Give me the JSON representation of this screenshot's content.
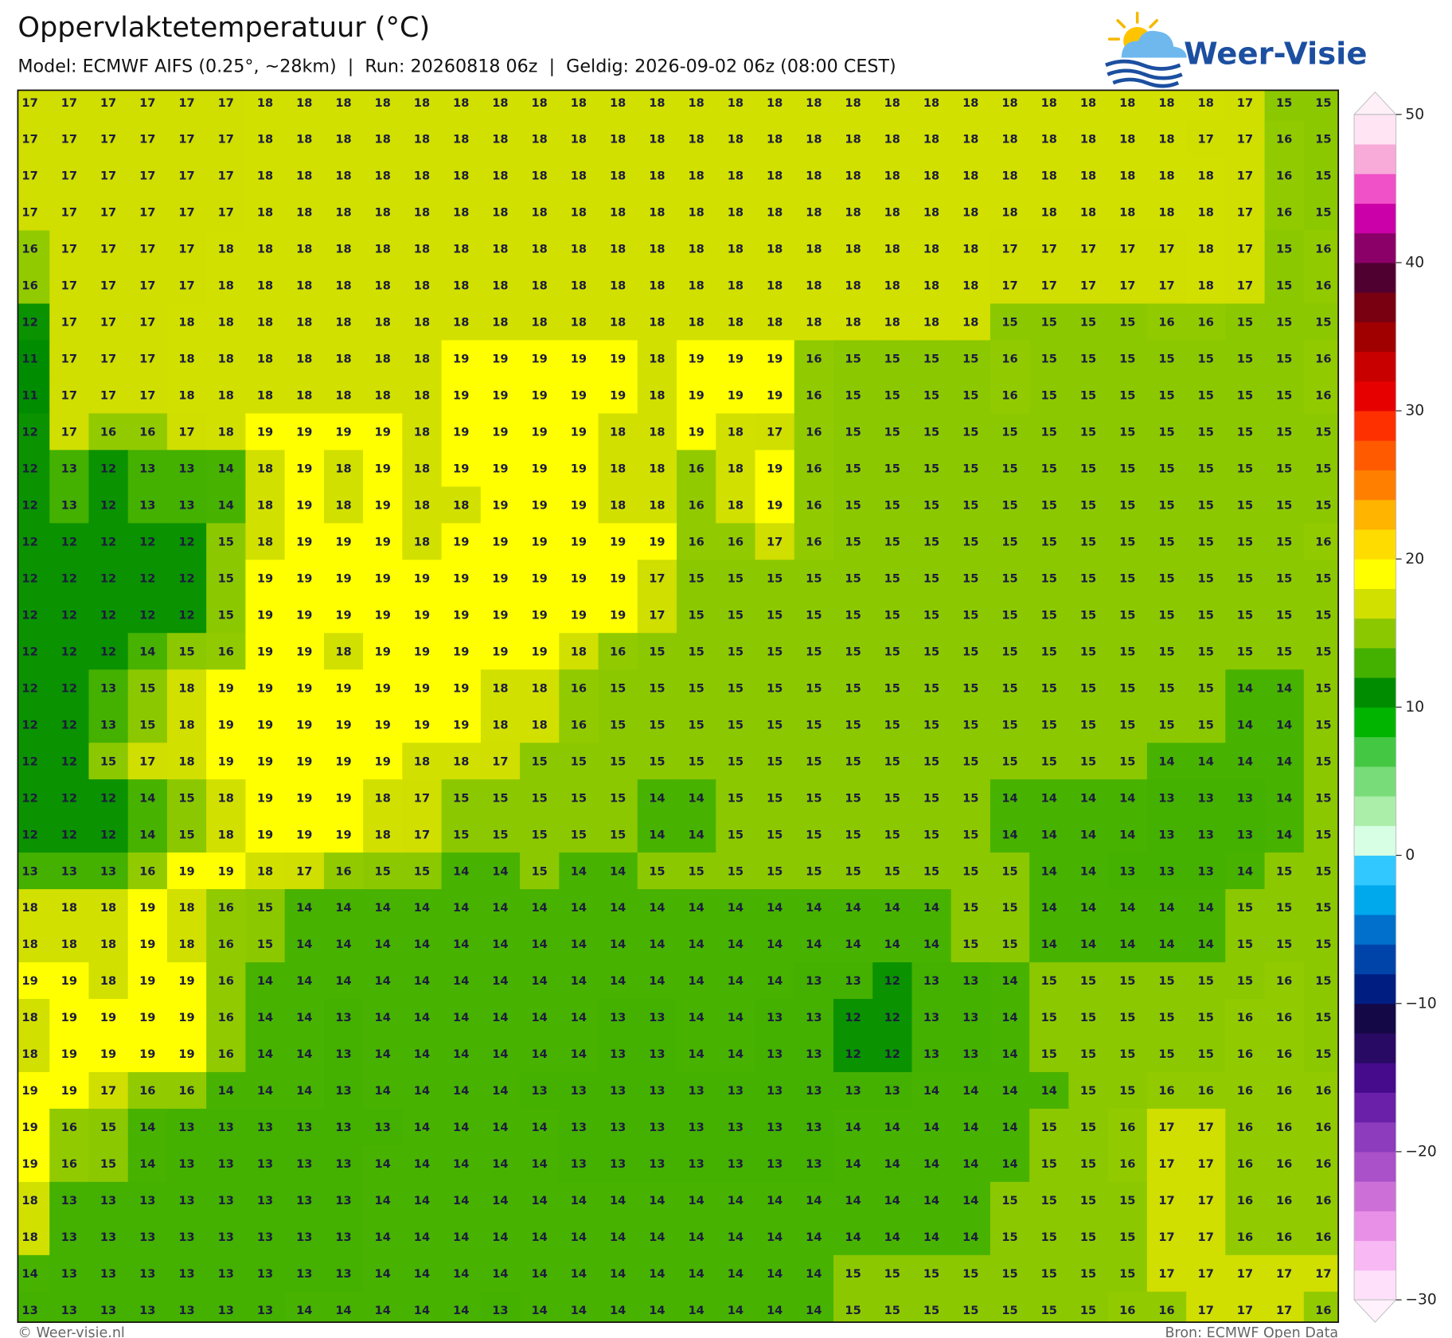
{
  "header": {
    "title": "Oppervlaktetemperatuur (°C)",
    "subtitle": "Model: ECMWF AIFS (0.25°, ~28km)  |  Run: 20260818 06z  |  Geldig: 2026-09-02 06z (08:00 CEST)"
  },
  "logo": {
    "text": "Weer-Visie"
  },
  "grid": {
    "cell_colors": {
      "11": "#008c00",
      "12": "#0a9200",
      "13": "#44b000",
      "14": "#48b200",
      "15": "#8cc800",
      "16": "#92ca00",
      "17": "#d0de00",
      "18": "#d2e000",
      "19": "#ffff00"
    },
    "rows": [
      [
        17,
        17,
        17,
        17,
        17,
        17,
        18,
        18,
        18,
        18,
        18,
        18,
        18,
        18,
        18,
        18,
        18,
        18,
        18,
        18,
        18,
        18,
        18,
        18,
        18,
        18,
        18,
        18,
        18,
        18,
        18,
        17,
        15,
        15
      ],
      [
        17,
        17,
        17,
        17,
        17,
        17,
        18,
        18,
        18,
        18,
        18,
        18,
        18,
        18,
        18,
        18,
        18,
        18,
        18,
        18,
        18,
        18,
        18,
        18,
        18,
        18,
        18,
        18,
        18,
        18,
        17,
        17,
        16,
        15
      ],
      [
        17,
        17,
        17,
        17,
        17,
        17,
        18,
        18,
        18,
        18,
        18,
        18,
        18,
        18,
        18,
        18,
        18,
        18,
        18,
        18,
        18,
        18,
        18,
        18,
        18,
        18,
        18,
        18,
        18,
        18,
        18,
        17,
        16,
        15
      ],
      [
        17,
        17,
        17,
        17,
        17,
        17,
        18,
        18,
        18,
        18,
        18,
        18,
        18,
        18,
        18,
        18,
        18,
        18,
        18,
        18,
        18,
        18,
        18,
        18,
        18,
        18,
        18,
        18,
        18,
        18,
        18,
        17,
        16,
        15
      ],
      [
        16,
        17,
        17,
        17,
        17,
        18,
        18,
        18,
        18,
        18,
        18,
        18,
        18,
        18,
        18,
        18,
        18,
        18,
        18,
        18,
        18,
        18,
        18,
        18,
        18,
        17,
        17,
        17,
        17,
        17,
        18,
        17,
        15,
        16
      ],
      [
        16,
        17,
        17,
        17,
        17,
        18,
        18,
        18,
        18,
        18,
        18,
        18,
        18,
        18,
        18,
        18,
        18,
        18,
        18,
        18,
        18,
        18,
        18,
        18,
        18,
        17,
        17,
        17,
        17,
        17,
        18,
        17,
        15,
        16
      ],
      [
        12,
        17,
        17,
        17,
        18,
        18,
        18,
        18,
        18,
        18,
        18,
        18,
        18,
        18,
        18,
        18,
        18,
        18,
        18,
        18,
        18,
        18,
        18,
        18,
        18,
        15,
        15,
        15,
        15,
        16,
        16,
        15,
        15,
        15
      ],
      [
        11,
        17,
        17,
        17,
        18,
        18,
        18,
        18,
        18,
        18,
        18,
        19,
        19,
        19,
        19,
        19,
        18,
        19,
        19,
        19,
        16,
        15,
        15,
        15,
        15,
        16,
        15,
        15,
        15,
        15,
        15,
        15,
        15,
        16
      ],
      [
        11,
        17,
        17,
        17,
        18,
        18,
        18,
        18,
        18,
        18,
        18,
        19,
        19,
        19,
        19,
        19,
        18,
        19,
        19,
        19,
        16,
        15,
        15,
        15,
        15,
        16,
        15,
        15,
        15,
        15,
        15,
        15,
        15,
        16
      ],
      [
        12,
        17,
        16,
        16,
        17,
        18,
        19,
        19,
        19,
        19,
        18,
        19,
        19,
        19,
        19,
        18,
        18,
        19,
        18,
        17,
        16,
        15,
        15,
        15,
        15,
        15,
        15,
        15,
        15,
        15,
        15,
        15,
        15,
        15
      ],
      [
        12,
        13,
        12,
        13,
        13,
        14,
        18,
        19,
        18,
        19,
        18,
        19,
        19,
        19,
        19,
        18,
        18,
        16,
        18,
        19,
        16,
        15,
        15,
        15,
        15,
        15,
        15,
        15,
        15,
        15,
        15,
        15,
        15,
        15
      ],
      [
        12,
        13,
        12,
        13,
        13,
        14,
        18,
        19,
        18,
        19,
        18,
        18,
        19,
        19,
        19,
        18,
        18,
        16,
        18,
        19,
        16,
        15,
        15,
        15,
        15,
        15,
        15,
        15,
        15,
        15,
        15,
        15,
        15,
        15
      ],
      [
        12,
        12,
        12,
        12,
        12,
        15,
        18,
        19,
        19,
        19,
        18,
        19,
        19,
        19,
        19,
        19,
        19,
        16,
        16,
        17,
        16,
        15,
        15,
        15,
        15,
        15,
        15,
        15,
        15,
        15,
        15,
        15,
        15,
        16
      ],
      [
        12,
        12,
        12,
        12,
        12,
        15,
        19,
        19,
        19,
        19,
        19,
        19,
        19,
        19,
        19,
        19,
        17,
        15,
        15,
        15,
        15,
        15,
        15,
        15,
        15,
        15,
        15,
        15,
        15,
        15,
        15,
        15,
        15,
        15
      ],
      [
        12,
        12,
        12,
        12,
        12,
        15,
        19,
        19,
        19,
        19,
        19,
        19,
        19,
        19,
        19,
        19,
        17,
        15,
        15,
        15,
        15,
        15,
        15,
        15,
        15,
        15,
        15,
        15,
        15,
        15,
        15,
        15,
        15,
        15
      ],
      [
        12,
        12,
        12,
        14,
        15,
        16,
        19,
        19,
        18,
        19,
        19,
        19,
        19,
        19,
        18,
        16,
        15,
        15,
        15,
        15,
        15,
        15,
        15,
        15,
        15,
        15,
        15,
        15,
        15,
        15,
        15,
        15,
        15,
        15
      ],
      [
        12,
        12,
        13,
        15,
        18,
        19,
        19,
        19,
        19,
        19,
        19,
        19,
        18,
        18,
        16,
        15,
        15,
        15,
        15,
        15,
        15,
        15,
        15,
        15,
        15,
        15,
        15,
        15,
        15,
        15,
        15,
        14,
        14,
        15
      ],
      [
        12,
        12,
        13,
        15,
        18,
        19,
        19,
        19,
        19,
        19,
        19,
        19,
        18,
        18,
        16,
        15,
        15,
        15,
        15,
        15,
        15,
        15,
        15,
        15,
        15,
        15,
        15,
        15,
        15,
        15,
        15,
        14,
        14,
        15
      ],
      [
        12,
        12,
        15,
        17,
        18,
        19,
        19,
        19,
        19,
        19,
        18,
        18,
        17,
        15,
        15,
        15,
        15,
        15,
        15,
        15,
        15,
        15,
        15,
        15,
        15,
        15,
        15,
        15,
        15,
        14,
        14,
        14,
        14,
        15
      ],
      [
        12,
        12,
        12,
        14,
        15,
        18,
        19,
        19,
        19,
        18,
        17,
        15,
        15,
        15,
        15,
        15,
        14,
        14,
        15,
        15,
        15,
        15,
        15,
        15,
        15,
        14,
        14,
        14,
        14,
        13,
        13,
        13,
        14,
        15
      ],
      [
        12,
        12,
        12,
        14,
        15,
        18,
        19,
        19,
        19,
        18,
        17,
        15,
        15,
        15,
        15,
        15,
        14,
        14,
        15,
        15,
        15,
        15,
        15,
        15,
        15,
        14,
        14,
        14,
        14,
        13,
        13,
        13,
        14,
        15
      ],
      [
        13,
        13,
        13,
        16,
        19,
        19,
        18,
        17,
        16,
        15,
        15,
        14,
        14,
        15,
        14,
        14,
        15,
        15,
        15,
        15,
        15,
        15,
        15,
        15,
        15,
        15,
        14,
        14,
        13,
        13,
        13,
        14,
        15,
        15
      ],
      [
        18,
        18,
        18,
        19,
        18,
        16,
        15,
        14,
        14,
        14,
        14,
        14,
        14,
        14,
        14,
        14,
        14,
        14,
        14,
        14,
        14,
        14,
        14,
        14,
        15,
        15,
        14,
        14,
        14,
        14,
        14,
        15,
        15,
        15
      ],
      [
        18,
        18,
        18,
        19,
        18,
        16,
        15,
        14,
        14,
        14,
        14,
        14,
        14,
        14,
        14,
        14,
        14,
        14,
        14,
        14,
        14,
        14,
        14,
        14,
        15,
        15,
        14,
        14,
        14,
        14,
        14,
        15,
        15,
        15
      ],
      [
        19,
        19,
        18,
        19,
        19,
        16,
        14,
        14,
        14,
        14,
        14,
        14,
        14,
        14,
        14,
        14,
        14,
        14,
        14,
        14,
        13,
        13,
        12,
        13,
        13,
        14,
        15,
        15,
        15,
        15,
        15,
        15,
        16,
        15
      ],
      [
        18,
        19,
        19,
        19,
        19,
        16,
        14,
        14,
        13,
        14,
        14,
        14,
        14,
        14,
        14,
        13,
        13,
        14,
        14,
        13,
        13,
        12,
        12,
        13,
        13,
        14,
        15,
        15,
        15,
        15,
        15,
        16,
        16,
        15
      ],
      [
        18,
        19,
        19,
        19,
        19,
        16,
        14,
        14,
        13,
        14,
        14,
        14,
        14,
        14,
        14,
        13,
        13,
        14,
        14,
        13,
        13,
        12,
        12,
        13,
        13,
        14,
        15,
        15,
        15,
        15,
        15,
        16,
        16,
        15
      ],
      [
        19,
        19,
        17,
        16,
        16,
        14,
        14,
        14,
        13,
        14,
        14,
        14,
        14,
        13,
        13,
        13,
        13,
        13,
        13,
        13,
        13,
        13,
        13,
        14,
        14,
        14,
        14,
        15,
        15,
        16,
        16,
        16,
        16,
        16
      ],
      [
        19,
        16,
        15,
        14,
        13,
        13,
        13,
        13,
        13,
        13,
        14,
        14,
        14,
        14,
        13,
        13,
        13,
        13,
        13,
        13,
        13,
        14,
        14,
        14,
        14,
        14,
        15,
        15,
        16,
        17,
        17,
        16,
        16,
        16
      ],
      [
        19,
        16,
        15,
        14,
        13,
        13,
        13,
        13,
        13,
        14,
        14,
        14,
        14,
        14,
        13,
        13,
        13,
        13,
        13,
        13,
        13,
        14,
        14,
        14,
        14,
        14,
        15,
        15,
        16,
        17,
        17,
        16,
        16,
        16
      ],
      [
        18,
        13,
        13,
        13,
        13,
        13,
        13,
        13,
        13,
        14,
        14,
        14,
        14,
        14,
        14,
        14,
        14,
        14,
        14,
        14,
        14,
        14,
        14,
        14,
        14,
        15,
        15,
        15,
        15,
        17,
        17,
        16,
        16,
        16
      ],
      [
        18,
        13,
        13,
        13,
        13,
        13,
        13,
        13,
        13,
        14,
        14,
        14,
        14,
        14,
        14,
        14,
        14,
        14,
        14,
        14,
        14,
        14,
        14,
        14,
        14,
        15,
        15,
        15,
        15,
        17,
        17,
        16,
        16,
        16
      ],
      [
        14,
        13,
        13,
        13,
        13,
        13,
        13,
        13,
        13,
        14,
        14,
        14,
        14,
        14,
        14,
        14,
        14,
        14,
        14,
        14,
        14,
        15,
        15,
        15,
        15,
        15,
        15,
        15,
        15,
        17,
        17,
        17,
        17,
        17
      ],
      [
        13,
        13,
        13,
        13,
        13,
        13,
        13,
        14,
        14,
        14,
        14,
        14,
        13,
        14,
        14,
        14,
        14,
        14,
        14,
        14,
        14,
        15,
        15,
        15,
        15,
        15,
        15,
        15,
        16,
        16,
        17,
        17,
        17,
        16
      ]
    ]
  },
  "colorbar": {
    "lim": [
      -30,
      50
    ],
    "ticks": [
      {
        "value": -30,
        "label": "−30"
      },
      {
        "value": -20,
        "label": "−20"
      },
      {
        "value": -10,
        "label": "−10"
      },
      0,
      10,
      20,
      30,
      40,
      50
    ],
    "under_color": "#fff2fc",
    "over_color": "#fff0f8",
    "colors": [
      "#ffe0fa",
      "#f8b8f4",
      "#e890e8",
      "#cc70d8",
      "#aa50c8",
      "#8c3cbc",
      "#6a20a8",
      "#460a8c",
      "#280a64",
      "#140846",
      "#001e82",
      "#0044aa",
      "#0070cc",
      "#00a8ec",
      "#30c8ff",
      "#d6ffe4",
      "#aaeeaa",
      "#78dc78",
      "#44c844",
      "#00b400",
      "#008c00",
      "#44b000",
      "#8cc800",
      "#d2e000",
      "#ffff00",
      "#ffdc00",
      "#ffb400",
      "#ff8000",
      "#ff5a00",
      "#ff3000",
      "#e60000",
      "#c80000",
      "#a00000",
      "#780010",
      "#500030",
      "#8a0068",
      "#cc00a8",
      "#f050c8",
      "#f8aad8",
      "#ffe4f4"
    ]
  },
  "footer": {
    "left": "© Weer-visie.nl",
    "right": "Bron: ECMWF Open Data"
  }
}
